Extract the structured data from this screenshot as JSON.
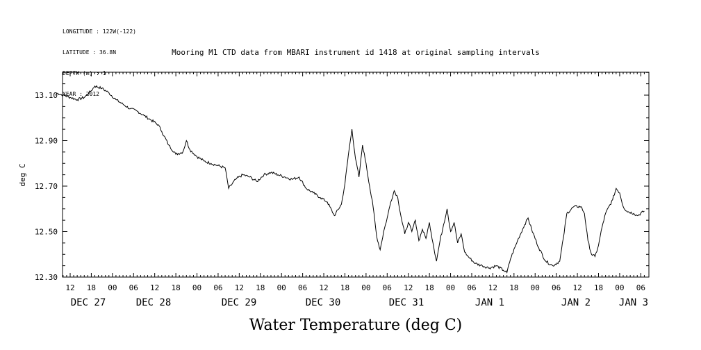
{
  "meta_lines": [
    "LONGITUDE : 122W(-122)",
    "LATITUDE : 36.8N",
    "DEPTH (m) : 1",
    "YEAR : 2012"
  ],
  "chart_data": {
    "type": "line",
    "title": "Mooring M1 CTD data from MBARI instrument id 1418 at original sampling intervals",
    "xlabel": "Water Temperature (deg C)",
    "ylabel": "deg C",
    "ylim": [
      12.3,
      13.2
    ],
    "yticks": [
      "12.30",
      "12.50",
      "12.70",
      "12.90",
      "13.10"
    ],
    "x_unit": "hours since DEC 26 2012 08:00",
    "xlim": [
      0,
      167
    ],
    "hour_ticks": [
      "12",
      "18",
      "00",
      "06",
      "12",
      "18",
      "00",
      "06",
      "12",
      "18",
      "00",
      "06",
      "12",
      "18",
      "00",
      "06",
      "12",
      "18",
      "00",
      "06",
      "12",
      "18",
      "00",
      "06",
      "12",
      "18",
      "00",
      "06"
    ],
    "date_labels": [
      "DEC 27",
      "DEC 28",
      "DEC 29",
      "DEC 30",
      "DEC 31",
      "JAN  1",
      "JAN  2",
      "JAN  3"
    ],
    "series": [
      {
        "values": [
          [
            0,
            13.11
          ],
          [
            2,
            13.1
          ],
          [
            4,
            13.09
          ],
          [
            6,
            13.08
          ],
          [
            8,
            13.09
          ],
          [
            10,
            13.12
          ],
          [
            11,
            13.14
          ],
          [
            13,
            13.13
          ],
          [
            15,
            13.11
          ],
          [
            17,
            13.08
          ],
          [
            19,
            13.06
          ],
          [
            21,
            13.04
          ],
          [
            23,
            13.03
          ],
          [
            25,
            13.01
          ],
          [
            27,
            12.99
          ],
          [
            29,
            12.97
          ],
          [
            30,
            12.94
          ],
          [
            32,
            12.88
          ],
          [
            34,
            12.84
          ],
          [
            36,
            12.85
          ],
          [
            37,
            12.9
          ],
          [
            38,
            12.86
          ],
          [
            40,
            12.83
          ],
          [
            42,
            12.81
          ],
          [
            44,
            12.8
          ],
          [
            46,
            12.79
          ],
          [
            48,
            12.78
          ],
          [
            49,
            12.69
          ],
          [
            51,
            12.73
          ],
          [
            53,
            12.75
          ],
          [
            55,
            12.74
          ],
          [
            57,
            12.72
          ],
          [
            59,
            12.75
          ],
          [
            61,
            12.76
          ],
          [
            63,
            12.75
          ],
          [
            65,
            12.74
          ],
          [
            67,
            12.73
          ],
          [
            69,
            12.74
          ],
          [
            71,
            12.69
          ],
          [
            73,
            12.67
          ],
          [
            75,
            12.65
          ],
          [
            77,
            12.63
          ],
          [
            79,
            12.57
          ],
          [
            81,
            12.62
          ],
          [
            82,
            12.71
          ],
          [
            83,
            12.84
          ],
          [
            84,
            12.95
          ],
          [
            85,
            12.82
          ],
          [
            86,
            12.74
          ],
          [
            87,
            12.88
          ],
          [
            88,
            12.8
          ],
          [
            89,
            12.7
          ],
          [
            90,
            12.61
          ],
          [
            91,
            12.48
          ],
          [
            92,
            12.42
          ],
          [
            93,
            12.5
          ],
          [
            94,
            12.56
          ],
          [
            95,
            12.63
          ],
          [
            96,
            12.68
          ],
          [
            97,
            12.65
          ],
          [
            98,
            12.56
          ],
          [
            99,
            12.49
          ],
          [
            100,
            12.54
          ],
          [
            101,
            12.5
          ],
          [
            102,
            12.55
          ],
          [
            103,
            12.46
          ],
          [
            104,
            12.51
          ],
          [
            105,
            12.47
          ],
          [
            106,
            12.54
          ],
          [
            107,
            12.45
          ],
          [
            108,
            12.37
          ],
          [
            109,
            12.46
          ],
          [
            110,
            12.53
          ],
          [
            111,
            12.6
          ],
          [
            112,
            12.5
          ],
          [
            113,
            12.54
          ],
          [
            114,
            12.45
          ],
          [
            115,
            12.49
          ],
          [
            116,
            12.41
          ],
          [
            117,
            12.39
          ],
          [
            119,
            12.36
          ],
          [
            121,
            12.35
          ],
          [
            123,
            12.34
          ],
          [
            125,
            12.35
          ],
          [
            127,
            12.33
          ],
          [
            128,
            12.32
          ],
          [
            129,
            12.38
          ],
          [
            131,
            12.46
          ],
          [
            133,
            12.53
          ],
          [
            134,
            12.56
          ],
          [
            135,
            12.51
          ],
          [
            137,
            12.43
          ],
          [
            139,
            12.37
          ],
          [
            141,
            12.35
          ],
          [
            143,
            12.37
          ],
          [
            144,
            12.47
          ],
          [
            145,
            12.58
          ],
          [
            147,
            12.61
          ],
          [
            149,
            12.61
          ],
          [
            150,
            12.58
          ],
          [
            151,
            12.46
          ],
          [
            152,
            12.4
          ],
          [
            153,
            12.39
          ],
          [
            154,
            12.44
          ],
          [
            155,
            12.52
          ],
          [
            156,
            12.58
          ],
          [
            158,
            12.64
          ],
          [
            159,
            12.69
          ],
          [
            160,
            12.67
          ],
          [
            161,
            12.61
          ],
          [
            162,
            12.59
          ],
          [
            164,
            12.58
          ],
          [
            165,
            12.57
          ],
          [
            167,
            12.59
          ]
        ]
      }
    ]
  }
}
